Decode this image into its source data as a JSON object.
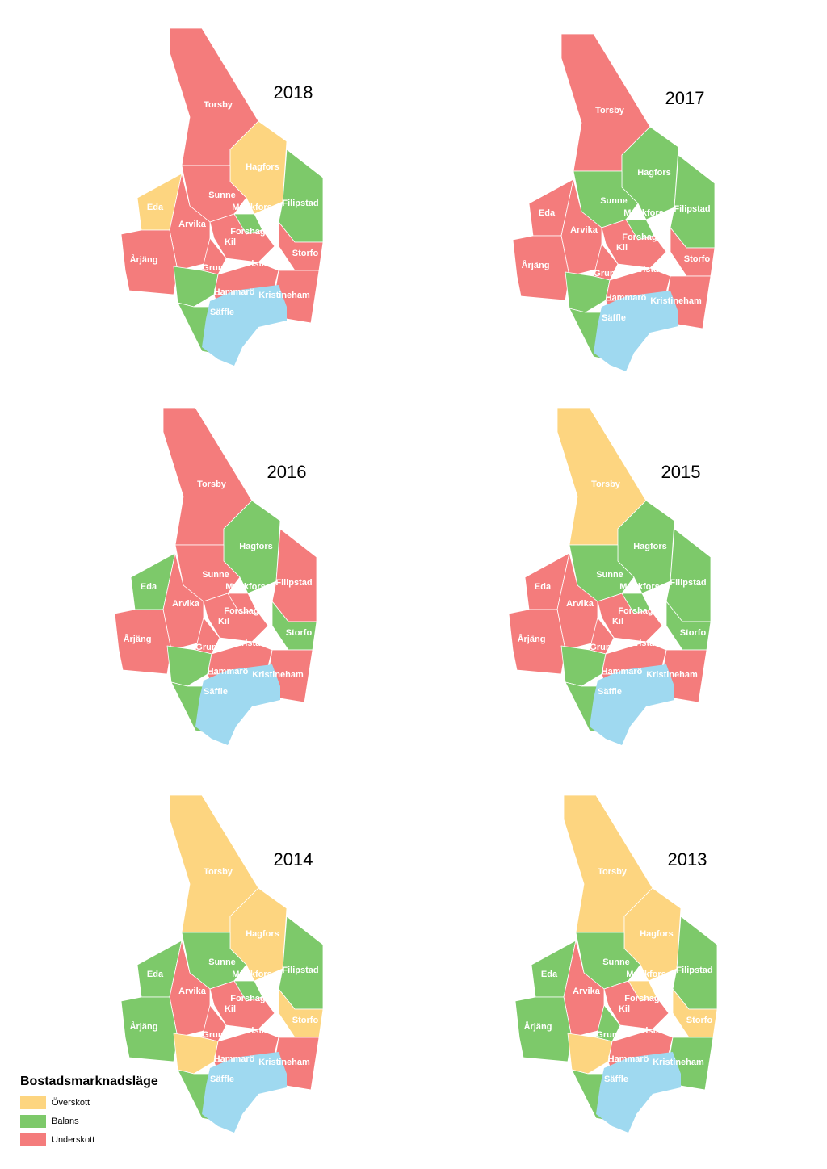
{
  "municipalities": [
    "Torsby",
    "Hagfors",
    "Filipstad",
    "Eda",
    "Sunne",
    "Munkfors",
    "Arvika",
    "Årjäng",
    "Forshaga",
    "Kil",
    "Grums",
    "Karlstad",
    "Storfo",
    "Kristineham",
    "Hammarö",
    "Säffle"
  ],
  "maps": [
    {
      "year": "2018",
      "status": [
        "Underskott",
        "Överskott",
        "Balans",
        "Överskott",
        "Underskott",
        "Balans",
        "Underskott",
        "Underskott",
        "Underskott",
        "Underskott",
        "Balans",
        "Underskott",
        "Underskott",
        "Underskott",
        "Underskott",
        "Balans"
      ]
    },
    {
      "year": "2017",
      "status": [
        "Underskott",
        "Balans",
        "Balans",
        "Underskott",
        "Balans",
        "Balans",
        "Underskott",
        "Underskott",
        "Underskott",
        "Underskott",
        "Balans",
        "Underskott",
        "Underskott",
        "Underskott",
        "Underskott",
        "Balans"
      ]
    },
    {
      "year": "2016",
      "status": [
        "Underskott",
        "Balans",
        "Underskott",
        "Balans",
        "Underskott",
        "Underskott",
        "Underskott",
        "Underskott",
        "Underskott",
        "Underskott",
        "Balans",
        "Underskott",
        "Balans",
        "Underskott",
        "Underskott",
        "Balans"
      ]
    },
    {
      "year": "2015",
      "status": [
        "Överskott",
        "Balans",
        "Balans",
        "Underskott",
        "Balans",
        "Balans",
        "Underskott",
        "Underskott",
        "Underskott",
        "Underskott",
        "Balans",
        "Underskott",
        "Balans",
        "Underskott",
        "Underskott",
        "Balans"
      ]
    },
    {
      "year": "2014",
      "status": [
        "Överskott",
        "Överskott",
        "Balans",
        "Balans",
        "Balans",
        "Balans",
        "Underskott",
        "Balans",
        "Underskott",
        "Underskott",
        "Överskott",
        "Underskott",
        "Överskott",
        "Underskott",
        "Underskott",
        "Balans"
      ]
    },
    {
      "year": "2013",
      "status": [
        "Överskott",
        "Överskott",
        "Balans",
        "Balans",
        "Balans",
        "Överskott",
        "Underskott",
        "Balans",
        "Underskott",
        "Balans",
        "Överskott",
        "Underskott",
        "Överskott",
        "Balans",
        "Underskott",
        "Balans"
      ]
    }
  ],
  "legend": {
    "title": "Bostadsmarknadsläge",
    "items": [
      {
        "label": "Överskott",
        "color": "#fdd580"
      },
      {
        "label": "Balans",
        "color": "#7dc96a"
      },
      {
        "label": "Underskott",
        "color": "#f47c7c"
      }
    ]
  }
}
